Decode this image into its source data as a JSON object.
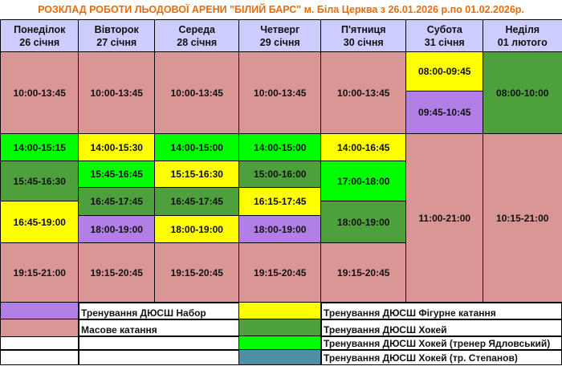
{
  "title": "РОЗКЛАД РОБОТИ ЛЬОДОВОЇ АРЕНИ \"БІЛИЙ БАРС\" м. Біла Церква з 26.01.2026 р.по 01.02.2026р.",
  "colors": {
    "mass": "#da9694",
    "lime": "#00ff00",
    "hockey": "#4ea03d",
    "figure": "#ffff00",
    "nabor": "#b27fe6",
    "stepanov": "#4f8fa6",
    "header": "#ccccff",
    "title": "#e46c0a"
  },
  "days": [
    {
      "name": "Понеділок",
      "date": "26 січня",
      "slots": [
        {
          "time": "10:00-13:45",
          "type": "mass"
        },
        {
          "time": "14:00-15:15",
          "type": "lime"
        },
        {
          "time": "15:45-16:30",
          "type": "hockey"
        },
        {
          "time": "16:45-19:00",
          "type": "figure"
        },
        {
          "time": "19:15-21:00",
          "type": "mass"
        }
      ]
    },
    {
      "name": "Вівторок",
      "date": "27 січня",
      "slots": [
        {
          "time": "10:00-13:45",
          "type": "mass"
        },
        {
          "time": "14:00-15:30",
          "type": "figure"
        },
        {
          "time": "15:45-16:45",
          "type": "lime"
        },
        {
          "time": "16:45-17:45",
          "type": "hockey"
        },
        {
          "time": "18:00-19:00",
          "type": "nabor"
        },
        {
          "time": "19:15-20:45",
          "type": "mass"
        }
      ]
    },
    {
      "name": "Середа",
      "date": "28 січня",
      "slots": [
        {
          "time": "10:00-13:45",
          "type": "mass"
        },
        {
          "time": "14:00-15:00",
          "type": "lime"
        },
        {
          "time": "15:15-16:30",
          "type": "figure"
        },
        {
          "time": "16:45-17:45",
          "type": "hockey"
        },
        {
          "time": "18:00-19:00",
          "type": "figure"
        },
        {
          "time": "19:15-20:45",
          "type": "mass"
        }
      ]
    },
    {
      "name": "Четверг",
      "date": "29 січня",
      "slots": [
        {
          "time": "10:00-13:45",
          "type": "mass"
        },
        {
          "time": "14:00-15:00",
          "type": "lime"
        },
        {
          "time": "15:00-16:00",
          "type": "hockey"
        },
        {
          "time": "16:15-17:45",
          "type": "figure"
        },
        {
          "time": "18:00-19:00",
          "type": "nabor"
        },
        {
          "time": "19:15-20:45",
          "type": "mass"
        }
      ]
    },
    {
      "name": "П'ятниця",
      "date": "30 січня",
      "slots": [
        {
          "time": "10:00-13:45",
          "type": "mass"
        },
        {
          "time": "14:00-16:45",
          "type": "figure"
        },
        {
          "time": "17:00-18:00",
          "type": "lime"
        },
        {
          "time": "18:00-19:00",
          "type": "hockey"
        },
        {
          "time": "19:15-20:45",
          "type": "mass"
        }
      ]
    },
    {
      "name": "Субота",
      "date": "31 січня",
      "slots": [
        {
          "time": "08:00-09:45",
          "type": "figure"
        },
        {
          "time": "09:45-10:45",
          "type": "nabor"
        },
        {
          "time": "11:00-21:00",
          "type": "mass"
        }
      ]
    },
    {
      "name": "Неділя",
      "date": "01 лютого",
      "slots": [
        {
          "time": "08:00-10:00",
          "type": "hockey"
        },
        {
          "time": "10:15-21:00",
          "type": "mass"
        }
      ]
    }
  ],
  "legend": [
    {
      "type": "nabor",
      "label": "Тренування ДЮСШ Набор"
    },
    {
      "type": "mass",
      "label": "Масове катання"
    },
    {
      "type": "figure",
      "label": "Тренування ДЮСШ Фігурне катання"
    },
    {
      "type": "hockey",
      "label": "Тренування ДЮСШ Хокей"
    },
    {
      "type": "lime",
      "label": "Тренування ДЮСШ Хокей (тренер Ядловський)"
    },
    {
      "type": "stepanov",
      "label": "Тренування ДЮСШ Хокей (тр. Степанов)"
    }
  ]
}
